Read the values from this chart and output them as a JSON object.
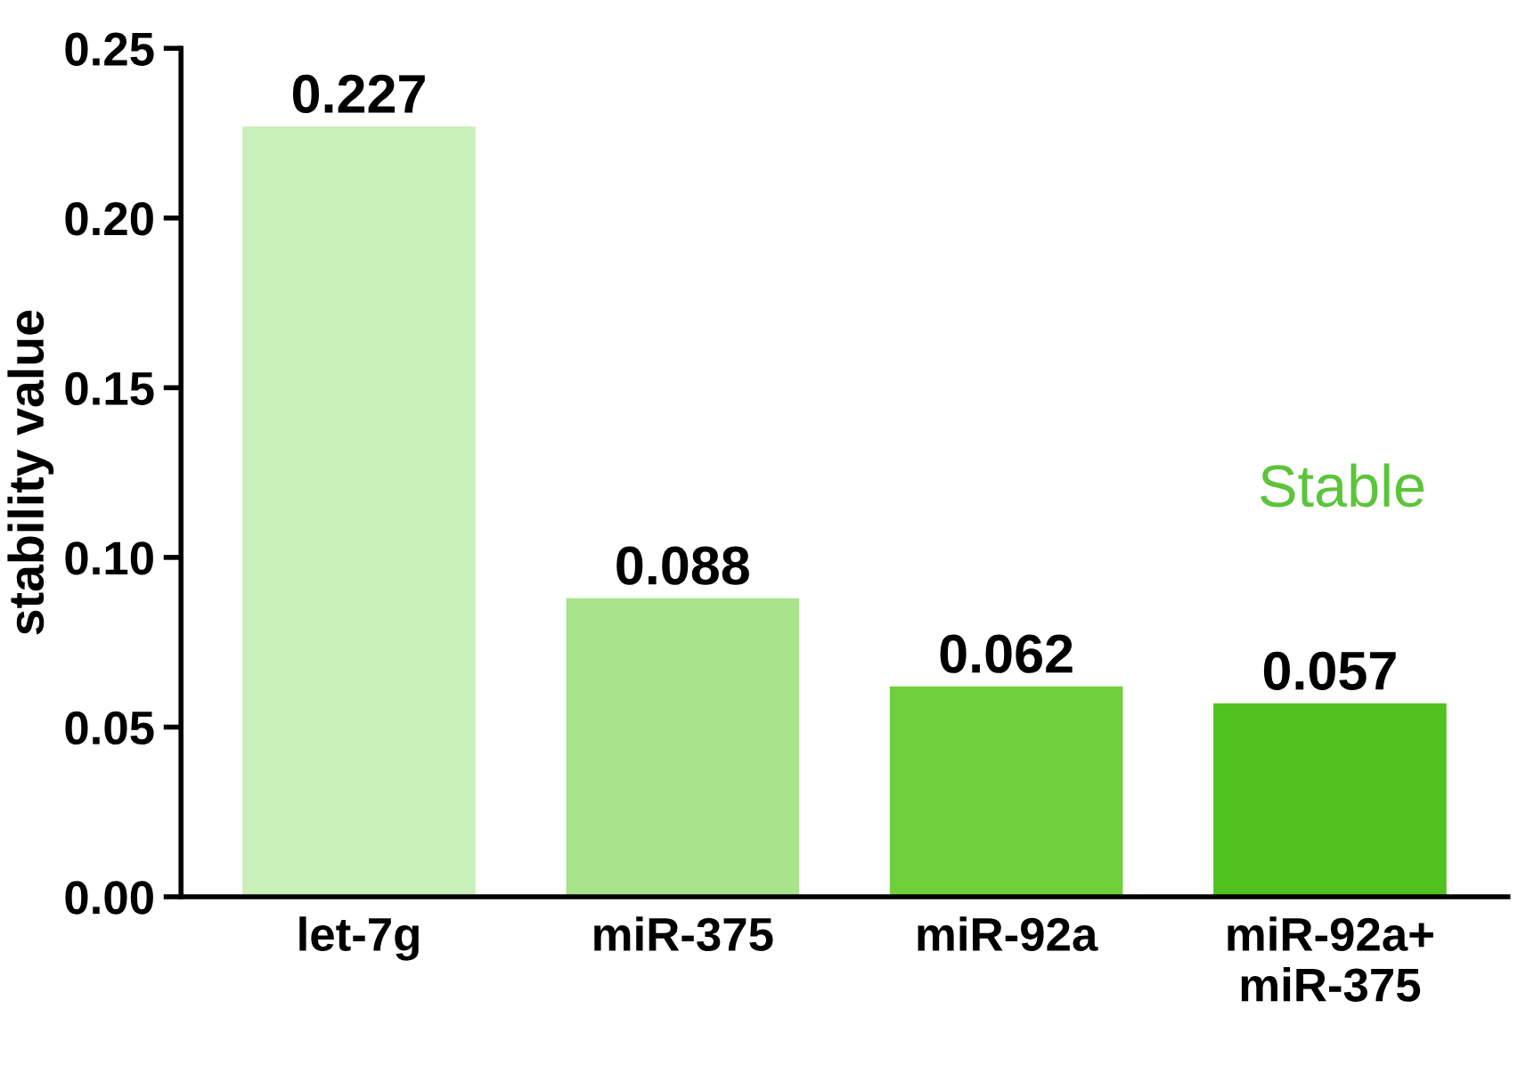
{
  "chart_data": {
    "type": "bar",
    "ylabel": "stability value",
    "categories": [
      "let-7g",
      "miR-375",
      "miR-92a",
      "miR-92a+\nmiR-375"
    ],
    "values": [
      0.227,
      0.088,
      0.062,
      0.057
    ],
    "colors": [
      "#c9f0b9",
      "#a7e48b",
      "#6fd03c",
      "#4fc21e"
    ],
    "value_labels": [
      "0.227",
      "0.088",
      "0.062",
      "0.057"
    ],
    "ylim": [
      0,
      0.25
    ],
    "yticks": [
      "0.00",
      "0.05",
      "0.10",
      "0.15",
      "0.20",
      "0.25"
    ],
    "annotations": [
      "Stable"
    ],
    "grid": false,
    "legend": false
  }
}
